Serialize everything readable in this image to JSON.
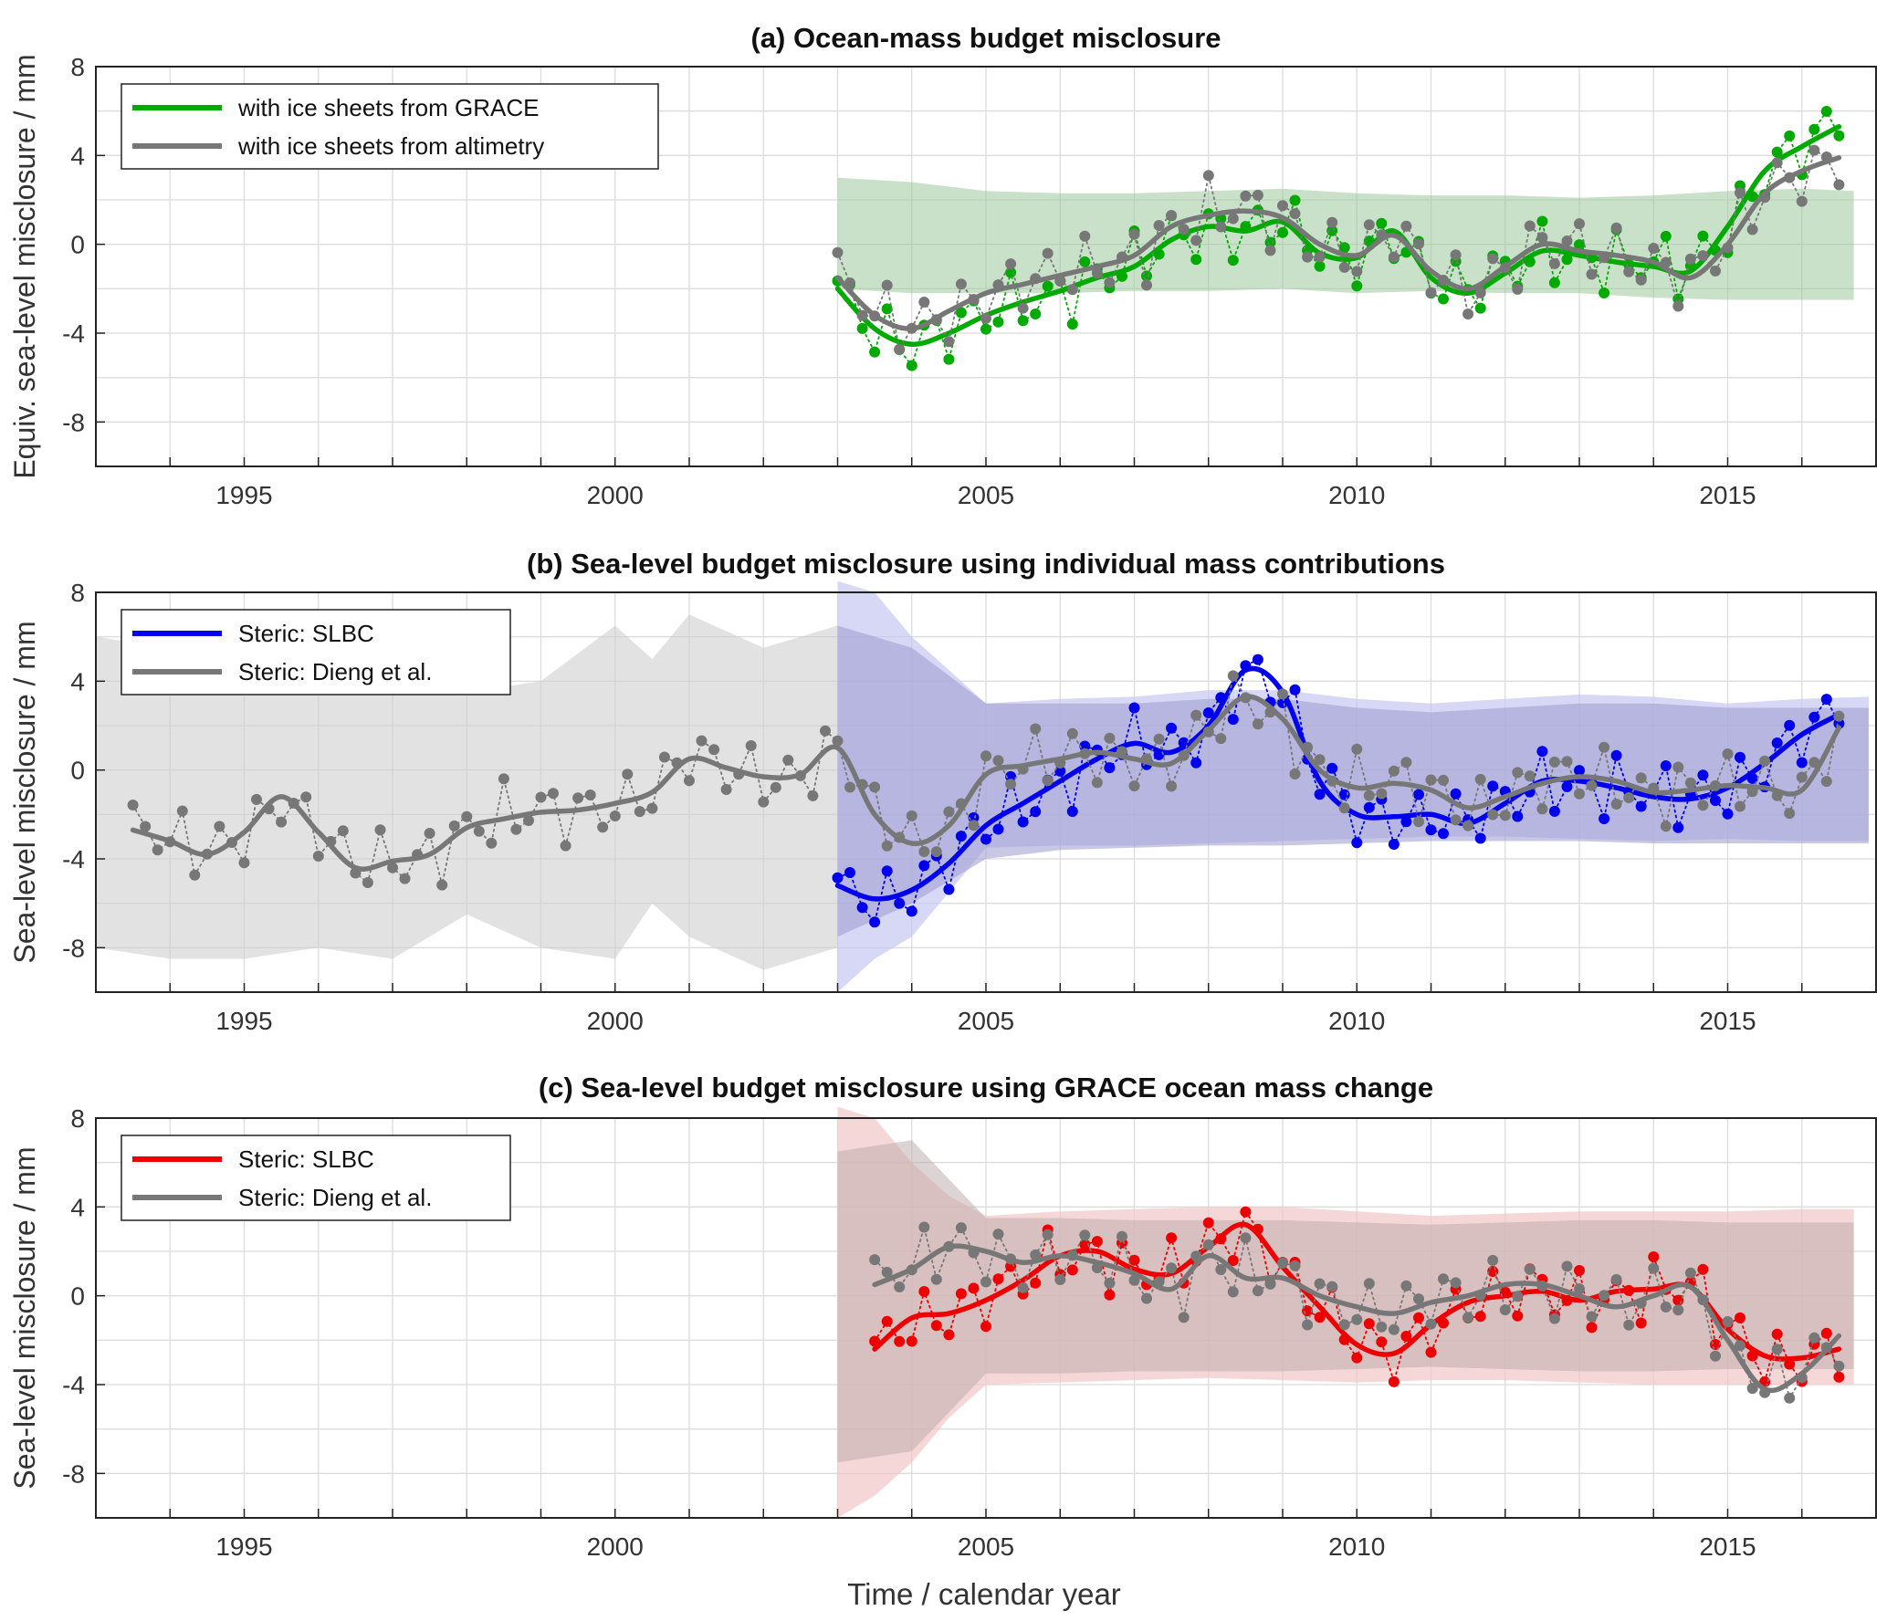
{
  "figure": {
    "xlabel": "Time / calendar year"
  },
  "chart_data": [
    {
      "type": "line",
      "title": "(a) Ocean-mass budget misclosure",
      "ylabel": "Equiv. sea-level misclosure / mm",
      "xlim": [
        1993,
        2017
      ],
      "ylim": [
        -10,
        8
      ],
      "xticks": [
        1995,
        2000,
        2005,
        2010,
        2015
      ],
      "yticks": [
        -8,
        -4,
        0,
        4,
        8
      ],
      "grid": true,
      "legend_position": "top-left",
      "bands": [
        {
          "name": "uncertainty (with ice sheets from GRACE)",
          "color": "#9cc89c",
          "opacity": 0.55,
          "x": [
            2003.0,
            2004,
            2005,
            2006,
            2007,
            2008,
            2009,
            2010,
            2011,
            2012,
            2013,
            2014,
            2015,
            2016,
            2016.7
          ],
          "upper": [
            3.0,
            2.8,
            2.4,
            2.3,
            2.3,
            2.4,
            2.5,
            2.3,
            2.2,
            2.2,
            2.1,
            2.2,
            2.4,
            2.5,
            2.4
          ],
          "lower": [
            -2.0,
            -2.2,
            -2.2,
            -2.2,
            -2.1,
            -2.1,
            -2.0,
            -2.2,
            -2.1,
            -2.2,
            -2.2,
            -2.4,
            -2.5,
            -2.5,
            -2.5
          ]
        }
      ],
      "series": [
        {
          "name": "with ice sheets from GRACE",
          "legend": true,
          "color": "#00aa00",
          "dots": true,
          "x": [
            2003.0,
            2003.5,
            2004.0,
            2004.5,
            2005.0,
            2005.5,
            2006.0,
            2006.5,
            2007.0,
            2007.5,
            2008.0,
            2008.5,
            2009.0,
            2009.5,
            2010.0,
            2010.5,
            2011.0,
            2011.5,
            2012.0,
            2012.5,
            2013.0,
            2013.5,
            2014.0,
            2014.5,
            2015.0,
            2015.5,
            2016.0,
            2016.5
          ],
          "y": [
            -2.0,
            -3.8,
            -4.5,
            -4.0,
            -3.2,
            -2.6,
            -2.1,
            -1.5,
            -1.0,
            0.2,
            0.8,
            0.6,
            1.0,
            -0.4,
            -0.6,
            0.6,
            -1.5,
            -2.2,
            -1.3,
            -0.3,
            -0.5,
            -0.8,
            -1.0,
            -1.2,
            0.8,
            3.3,
            4.4,
            5.3
          ]
        },
        {
          "name": "with ice sheets from altimetry",
          "legend": true,
          "color": "#777777",
          "dots": true,
          "x": [
            2003.0,
            2003.5,
            2004.0,
            2004.5,
            2005.0,
            2005.5,
            2006.0,
            2006.5,
            2007.0,
            2007.5,
            2008.0,
            2008.5,
            2009.0,
            2009.5,
            2010.0,
            2010.5,
            2011.0,
            2011.5,
            2012.0,
            2012.5,
            2013.0,
            2013.5,
            2014.0,
            2014.5,
            2015.0,
            2015.5,
            2016.0,
            2016.5
          ],
          "y": [
            -1.5,
            -3.2,
            -3.8,
            -3.0,
            -2.2,
            -1.8,
            -1.4,
            -1.0,
            -0.5,
            0.8,
            1.3,
            1.5,
            1.2,
            0.0,
            -0.5,
            0.4,
            -1.2,
            -2.0,
            -1.0,
            0.0,
            -0.3,
            -0.5,
            -0.8,
            -1.5,
            0.0,
            2.3,
            3.3,
            3.9
          ]
        }
      ]
    },
    {
      "type": "line",
      "title": "(b) Sea-level budget misclosure using individual mass contributions",
      "ylabel": "Sea-level misclosure / mm",
      "xlim": [
        1993,
        2017
      ],
      "ylim": [
        -10,
        8
      ],
      "xticks": [
        1995,
        2000,
        2005,
        2010,
        2015
      ],
      "yticks": [
        -8,
        -4,
        0,
        4,
        8
      ],
      "grid": true,
      "legend_position": "top-left",
      "bands": [
        {
          "name": "uncertainty (Steric: Dieng et al., 1993-2003)",
          "color": "#cfcfcf",
          "opacity": 0.6,
          "x": [
            1993.0,
            1994,
            1995,
            1996,
            1997,
            1998,
            1999,
            2000,
            2000.5,
            2001,
            2002,
            2003.0
          ],
          "upper": [
            6.0,
            5.5,
            5.0,
            4.5,
            4.0,
            3.5,
            4.0,
            6.5,
            5.0,
            7.0,
            5.5,
            6.5
          ],
          "lower": [
            -8.0,
            -8.5,
            -8.5,
            -8.0,
            -8.5,
            -6.5,
            -8.0,
            -8.5,
            -6.0,
            -7.5,
            -9.0,
            -8.0
          ]
        },
        {
          "name": "uncertainty (Steric: SLBC)",
          "color": "#c6c6f2",
          "opacity": 0.7,
          "x": [
            2003.0,
            2003.5,
            2004.0,
            2004.5,
            2005,
            2006,
            2007,
            2008,
            2009,
            2010,
            2011,
            2012,
            2013,
            2014,
            2015,
            2016,
            2016.9
          ],
          "upper": [
            8.5,
            8.0,
            6.0,
            4.5,
            3.0,
            3.2,
            3.3,
            3.6,
            3.6,
            3.2,
            3.0,
            3.2,
            3.4,
            3.3,
            3.0,
            3.2,
            3.3
          ],
          "lower": [
            -10.0,
            -8.5,
            -7.5,
            -5.5,
            -3.5,
            -3.4,
            -3.4,
            -3.3,
            -3.2,
            -3.1,
            -3.0,
            -3.0,
            -3.1,
            -3.2,
            -3.1,
            -3.2,
            -3.2
          ]
        },
        {
          "name": "uncertainty (Steric: Dieng et al., 2003-2017)",
          "color": "#9b9bcf",
          "opacity": 0.55,
          "x": [
            2003.0,
            2004,
            2005,
            2006,
            2007,
            2008,
            2009,
            2010,
            2011,
            2012,
            2013,
            2014,
            2015,
            2016,
            2016.9
          ],
          "upper": [
            6.5,
            5.5,
            3.0,
            3.0,
            3.0,
            3.2,
            3.2,
            2.8,
            2.6,
            2.8,
            3.0,
            3.0,
            2.8,
            2.8,
            2.8
          ],
          "lower": [
            -7.5,
            -6.0,
            -4.0,
            -3.6,
            -3.5,
            -3.4,
            -3.4,
            -3.3,
            -3.2,
            -3.2,
            -3.2,
            -3.3,
            -3.3,
            -3.3,
            -3.3
          ]
        }
      ],
      "series": [
        {
          "name": "Steric: SLBC",
          "legend": true,
          "color": "#0000ee",
          "dots": true,
          "x": [
            2003.0,
            2003.5,
            2004.0,
            2004.5,
            2005.0,
            2005.5,
            2006.0,
            2006.5,
            2007.0,
            2007.5,
            2008.0,
            2008.5,
            2009.0,
            2009.5,
            2010.0,
            2010.5,
            2011.0,
            2011.5,
            2012.0,
            2012.5,
            2013.0,
            2013.5,
            2014.0,
            2014.5,
            2015.0,
            2015.5,
            2016.0,
            2016.5
          ],
          "y": [
            -5.2,
            -5.8,
            -5.4,
            -4.2,
            -2.5,
            -1.5,
            -0.5,
            0.5,
            1.2,
            0.8,
            2.0,
            4.5,
            3.5,
            -0.5,
            -2.0,
            -2.1,
            -2.0,
            -2.4,
            -1.5,
            -0.5,
            -0.5,
            -0.8,
            -1.2,
            -1.3,
            -0.8,
            0.3,
            1.6,
            2.5
          ]
        },
        {
          "name": "Steric: Dieng et al.",
          "legend": true,
          "color": "#777777",
          "dots": true,
          "x": [
            1993.5,
            1994.0,
            1994.5,
            1995.0,
            1995.5,
            1996.0,
            1996.5,
            1997.0,
            1997.5,
            1998.0,
            1998.5,
            1999.0,
            1999.5,
            2000.0,
            2000.5,
            2001.0,
            2001.5,
            2002.0,
            2002.5,
            2003.0,
            2003.5,
            2004.0,
            2004.5,
            2005.0,
            2005.5,
            2006.0,
            2006.5,
            2007.0,
            2007.5,
            2008.0,
            2008.5,
            2009.0,
            2009.5,
            2010.0,
            2010.5,
            2011.0,
            2011.5,
            2012.0,
            2012.5,
            2013.0,
            2013.5,
            2014.0,
            2014.5,
            2015.0,
            2015.5,
            2016.0,
            2016.5
          ],
          "y": [
            -2.7,
            -3.2,
            -3.8,
            -2.8,
            -1.2,
            -2.8,
            -4.4,
            -4.1,
            -3.8,
            -2.6,
            -2.2,
            -1.9,
            -1.8,
            -1.5,
            -1.0,
            0.5,
            0.1,
            -0.3,
            -0.2,
            1.0,
            -2.0,
            -3.3,
            -2.5,
            -0.2,
            0.2,
            0.5,
            0.8,
            0.5,
            0.3,
            1.8,
            3.3,
            2.3,
            0.0,
            -0.8,
            -0.6,
            -0.9,
            -1.7,
            -1.2,
            -0.6,
            -0.3,
            -0.5,
            -1.0,
            -0.9,
            -0.7,
            -0.8,
            -0.9,
            1.9
          ]
        }
      ]
    },
    {
      "type": "line",
      "title": "(c) Sea-level budget misclosure using GRACE ocean mass change",
      "ylabel": "Sea-level misclosure / mm",
      "xlim": [
        1993,
        2017
      ],
      "ylim": [
        -10,
        8
      ],
      "xticks": [
        1995,
        2000,
        2005,
        2010,
        2015
      ],
      "yticks": [
        -8,
        -4,
        0,
        4,
        8
      ],
      "grid": true,
      "legend_position": "top-left",
      "bands": [
        {
          "name": "uncertainty (Steric: SLBC)",
          "color": "#f2c6c6",
          "opacity": 0.7,
          "x": [
            2003.0,
            2003.5,
            2004.0,
            2004.5,
            2005,
            2006,
            2007,
            2008,
            2009,
            2010,
            2011,
            2012,
            2013,
            2014,
            2015,
            2016,
            2016.7
          ],
          "upper": [
            8.5,
            8.0,
            6.0,
            4.5,
            3.6,
            3.8,
            3.9,
            4.0,
            4.0,
            3.8,
            3.6,
            3.7,
            3.8,
            3.8,
            3.8,
            3.9,
            3.9
          ],
          "lower": [
            -10.0,
            -9.0,
            -7.5,
            -5.5,
            -4.0,
            -3.9,
            -3.8,
            -3.7,
            -3.8,
            -3.9,
            -3.8,
            -3.8,
            -3.9,
            -4.0,
            -4.0,
            -4.0,
            -4.0
          ]
        },
        {
          "name": "uncertainty (Steric: Dieng et al.)",
          "color": "#b9a9a9",
          "opacity": 0.5,
          "x": [
            2003.0,
            2004,
            2005,
            2006,
            2007,
            2008,
            2009,
            2010,
            2011,
            2012,
            2013,
            2014,
            2015,
            2016,
            2016.7
          ],
          "upper": [
            6.5,
            7.0,
            3.5,
            3.5,
            3.4,
            3.4,
            3.4,
            3.3,
            3.2,
            3.3,
            3.4,
            3.4,
            3.3,
            3.3,
            3.3
          ],
          "lower": [
            -7.5,
            -7.0,
            -3.5,
            -3.5,
            -3.4,
            -3.4,
            -3.4,
            -3.3,
            -3.2,
            -3.3,
            -3.4,
            -3.4,
            -3.3,
            -3.3,
            -3.3
          ]
        }
      ],
      "series": [
        {
          "name": "Steric: SLBC",
          "legend": true,
          "color": "#ee0000",
          "dots": true,
          "x": [
            2003.5,
            2004.0,
            2004.5,
            2005.0,
            2005.5,
            2006.0,
            2006.5,
            2007.0,
            2007.5,
            2008.0,
            2008.5,
            2009.0,
            2009.5,
            2010.0,
            2010.5,
            2011.0,
            2011.5,
            2012.0,
            2012.5,
            2013.0,
            2013.5,
            2014.0,
            2014.5,
            2015.0,
            2015.5,
            2016.0,
            2016.5
          ],
          "y": [
            -2.4,
            -1.0,
            -0.8,
            -0.2,
            0.7,
            1.8,
            2.0,
            1.2,
            1.0,
            2.2,
            3.2,
            1.3,
            -0.5,
            -2.2,
            -2.6,
            -1.3,
            -0.3,
            0.0,
            0.2,
            -0.2,
            0.2,
            0.3,
            0.4,
            -1.5,
            -2.7,
            -2.8,
            -2.4
          ]
        },
        {
          "name": "Steric: Dieng et al.",
          "legend": true,
          "color": "#777777",
          "dots": true,
          "x": [
            2003.5,
            2004.0,
            2004.5,
            2005.0,
            2005.5,
            2006.0,
            2006.5,
            2007.0,
            2007.5,
            2008.0,
            2008.5,
            2009.0,
            2009.5,
            2010.0,
            2010.5,
            2011.0,
            2011.5,
            2012.0,
            2012.5,
            2013.0,
            2013.5,
            2014.0,
            2014.5,
            2015.0,
            2015.5,
            2016.0,
            2016.5
          ],
          "y": [
            0.5,
            1.2,
            2.2,
            2.0,
            1.5,
            1.8,
            1.5,
            1.0,
            0.3,
            1.8,
            0.8,
            0.8,
            0.0,
            -0.5,
            -0.8,
            -0.3,
            0.0,
            0.5,
            0.5,
            0.0,
            -0.5,
            0.0,
            0.4,
            -2.0,
            -4.2,
            -3.5,
            -1.8
          ]
        }
      ]
    }
  ]
}
